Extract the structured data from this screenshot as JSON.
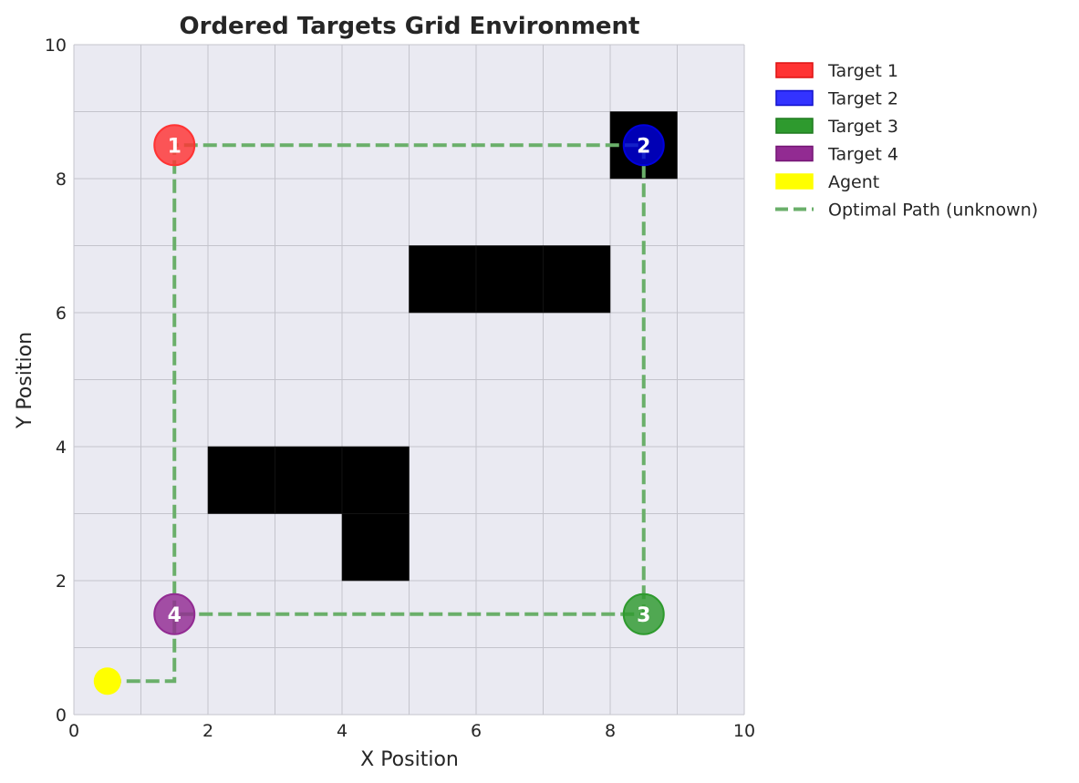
{
  "chart_data": {
    "type": "scatter",
    "title": "Ordered Targets Grid Environment",
    "xlabel": "X Position",
    "ylabel": "Y Position",
    "xlim": [
      0,
      10
    ],
    "ylim": [
      0,
      10
    ],
    "xticks": [
      "0",
      "2",
      "4",
      "6",
      "8",
      "10"
    ],
    "yticks": [
      "0",
      "2",
      "4",
      "6",
      "8",
      "10"
    ],
    "grid": true,
    "legend_position": "outside-top-right",
    "obstacles": [
      {
        "x": 2,
        "y": 3
      },
      {
        "x": 3,
        "y": 3
      },
      {
        "x": 4,
        "y": 3
      },
      {
        "x": 4,
        "y": 2
      },
      {
        "x": 5,
        "y": 6
      },
      {
        "x": 6,
        "y": 6
      },
      {
        "x": 7,
        "y": 6
      },
      {
        "x": 8,
        "y": 8
      }
    ],
    "targets": [
      {
        "label": "1",
        "x": 1.5,
        "y": 8.5,
        "color": "#ff3333"
      },
      {
        "label": "2",
        "x": 8.5,
        "y": 8.5,
        "color": "#0000dd"
      },
      {
        "label": "3",
        "x": 8.5,
        "y": 1.5,
        "color": "#2e9a2e"
      },
      {
        "label": "4",
        "x": 1.5,
        "y": 1.5,
        "color": "#922b92"
      }
    ],
    "agent": {
      "x": 0.5,
      "y": 0.5,
      "color": "#ffff00"
    },
    "path": {
      "color": "#6aaf6a",
      "points": [
        [
          0.5,
          0.5
        ],
        [
          1.5,
          0.5
        ],
        [
          1.5,
          8.5
        ],
        [
          8.5,
          8.5
        ],
        [
          8.5,
          1.5
        ],
        [
          1.5,
          1.5
        ]
      ]
    },
    "legend": [
      {
        "label": "Target 1",
        "kind": "patch",
        "fill": "#ff3333",
        "edge": "#dd1111"
      },
      {
        "label": "Target 2",
        "kind": "patch",
        "fill": "#3333ff",
        "edge": "#1111cc"
      },
      {
        "label": "Target 3",
        "kind": "patch",
        "fill": "#2e9a2e",
        "edge": "#1f7a1f"
      },
      {
        "label": "Target 4",
        "kind": "patch",
        "fill": "#922b92",
        "edge": "#741574"
      },
      {
        "label": "Agent",
        "kind": "patch",
        "fill": "#ffff00",
        "edge": "#ffff00"
      },
      {
        "label": "Optimal Path (unknown)",
        "kind": "line",
        "fill": "#6aaf6a",
        "edge": "#6aaf6a"
      }
    ]
  }
}
